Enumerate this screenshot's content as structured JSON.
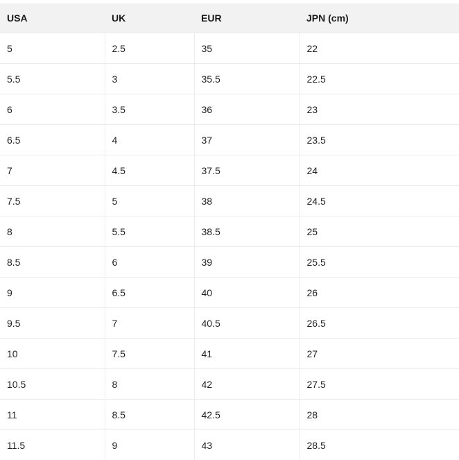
{
  "table": {
    "headers": [
      "USA",
      "UK",
      "EUR",
      "JPN (cm)"
    ],
    "rows": [
      [
        "5",
        "2.5",
        "35",
        "22"
      ],
      [
        "5.5",
        "3",
        "35.5",
        "22.5"
      ],
      [
        "6",
        "3.5",
        "36",
        "23"
      ],
      [
        "6.5",
        "4",
        "37",
        "23.5"
      ],
      [
        "7",
        "4.5",
        "37.5",
        "24"
      ],
      [
        "7.5",
        "5",
        "38",
        "24.5"
      ],
      [
        "8",
        "5.5",
        "38.5",
        "25"
      ],
      [
        "8.5",
        "6",
        "39",
        "25.5"
      ],
      [
        "9",
        "6.5",
        "40",
        "26"
      ],
      [
        "9.5",
        "7",
        "40.5",
        "26.5"
      ],
      [
        "10",
        "7.5",
        "41",
        "27"
      ],
      [
        "10.5",
        "8",
        "42",
        "27.5"
      ],
      [
        "11",
        "8.5",
        "42.5",
        "28"
      ],
      [
        "11.5",
        "9",
        "43",
        "28.5"
      ]
    ]
  },
  "colors": {
    "header_bg": "#f2f2f2",
    "border": "#ececec"
  }
}
